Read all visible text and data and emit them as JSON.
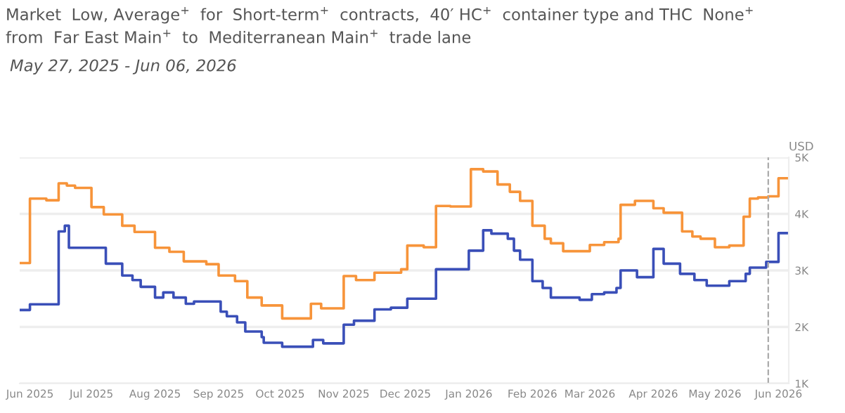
{
  "chart_data": {
    "type": "step",
    "title": "Market  Low, Average$^{+}$  for  Short-term$^{+}$  contracts,  40′ HC$^{+}$  container type and THC  None$^{+}$\nfrom  Far East Main$^{+}$  to  Mediterranean Main$^{+}$  trade lane",
    "subtitle": "May 27, 2025 - Jun 06, 2026",
    "ylabel": "USD",
    "series": [
      {
        "color": "#f7943a",
        "x": [
          "2025-05-27",
          "2025-06-01",
          "2025-06-09",
          "2025-06-15",
          "2025-06-19",
          "2025-06-23",
          "2025-07-01",
          "2025-07-07",
          "2025-07-16",
          "2025-07-22",
          "2025-08-01",
          "2025-08-08",
          "2025-08-15",
          "2025-08-26",
          "2025-09-01",
          "2025-09-09",
          "2025-09-15",
          "2025-09-22",
          "2025-10-02",
          "2025-10-16",
          "2025-10-21",
          "2025-11-01",
          "2025-11-07",
          "2025-11-16",
          "2025-11-29",
          "2025-12-02",
          "2025-12-10",
          "2025-12-16",
          "2025-12-23",
          "2026-01-02",
          "2026-01-08",
          "2026-01-15",
          "2026-01-21",
          "2026-01-26",
          "2026-02-01",
          "2026-02-07",
          "2026-02-10",
          "2026-02-16",
          "2026-03-01",
          "2026-03-08",
          "2026-03-15",
          "2026-03-16",
          "2026-03-23",
          "2026-04-01",
          "2026-04-06",
          "2026-04-15",
          "2026-04-20",
          "2026-04-24",
          "2026-05-01",
          "2026-05-08",
          "2026-05-15",
          "2026-05-18",
          "2026-05-22",
          "2026-05-27",
          "2026-06-01",
          "2026-06-06"
        ],
        "values": [
          3130,
          4270,
          4240,
          4540,
          4500,
          4460,
          4120,
          3990,
          3790,
          3680,
          3400,
          3330,
          3160,
          3110,
          2910,
          2810,
          2520,
          2380,
          2150,
          2410,
          2330,
          2900,
          2830,
          2960,
          3020,
          3440,
          3410,
          4140,
          4130,
          4790,
          4750,
          4520,
          4390,
          4230,
          3790,
          3560,
          3480,
          3340,
          3450,
          3500,
          3560,
          4160,
          4230,
          4100,
          4020,
          3690,
          3600,
          3560,
          3410,
          3440,
          3950,
          4270,
          4290,
          4310,
          4630,
          4630
        ]
      },
      {
        "color": "#3a4fb8",
        "x": [
          "2025-05-27",
          "2025-06-01",
          "2025-06-15",
          "2025-06-18",
          "2025-06-20",
          "2025-07-08",
          "2025-07-16",
          "2025-07-21",
          "2025-07-25",
          "2025-08-01",
          "2025-08-05",
          "2025-08-10",
          "2025-08-16",
          "2025-08-20",
          "2025-09-02",
          "2025-09-05",
          "2025-09-10",
          "2025-09-14",
          "2025-09-22",
          "2025-09-23",
          "2025-10-02",
          "2025-10-17",
          "2025-10-22",
          "2025-11-01",
          "2025-11-06",
          "2025-11-16",
          "2025-11-24",
          "2025-12-02",
          "2025-12-16",
          "2026-01-01",
          "2026-01-08",
          "2026-01-12",
          "2026-01-20",
          "2026-01-23",
          "2026-01-26",
          "2026-02-01",
          "2026-02-06",
          "2026-02-10",
          "2026-02-24",
          "2026-03-02",
          "2026-03-08",
          "2026-03-14",
          "2026-03-16",
          "2026-03-24",
          "2026-04-01",
          "2026-04-06",
          "2026-04-14",
          "2026-04-21",
          "2026-04-27",
          "2026-05-08",
          "2026-05-16",
          "2026-05-18",
          "2026-05-26",
          "2026-06-01",
          "2026-06-06"
        ],
        "values": [
          2300,
          2400,
          3690,
          3790,
          3400,
          3120,
          2910,
          2830,
          2710,
          2520,
          2610,
          2520,
          2410,
          2450,
          2270,
          2190,
          2080,
          1920,
          1820,
          1720,
          1650,
          1770,
          1710,
          2040,
          2110,
          2310,
          2340,
          2500,
          3020,
          3350,
          3710,
          3650,
          3560,
          3350,
          3190,
          2810,
          2690,
          2520,
          2480,
          2580,
          2610,
          2690,
          3000,
          2880,
          3380,
          3120,
          2940,
          2830,
          2730,
          2810,
          2940,
          3050,
          3150,
          3660,
          3660
        ]
      }
    ],
    "xlim": [
      "2025-05-27",
      "2026-06-06"
    ],
    "xticks": [
      {
        "value": "2025-06-01",
        "label": "Jun 2025"
      },
      {
        "value": "2025-07-01",
        "label": "Jul 2025"
      },
      {
        "value": "2025-08-01",
        "label": "Aug 2025"
      },
      {
        "value": "2025-09-01",
        "label": "Sep 2025"
      },
      {
        "value": "2025-10-01",
        "label": "Oct 2025"
      },
      {
        "value": "2025-11-01",
        "label": "Nov 2025"
      },
      {
        "value": "2025-12-01",
        "label": "Dec 2025"
      },
      {
        "value": "2026-01-01",
        "label": "Jan 2026"
      },
      {
        "value": "2026-02-01",
        "label": "Feb 2026"
      },
      {
        "value": "2026-03-01",
        "label": "Mar 2026"
      },
      {
        "value": "2026-04-01",
        "label": "Apr 2026"
      },
      {
        "value": "2026-05-01",
        "label": "May 2026"
      },
      {
        "value": "2026-06-01",
        "label": "Jun 2026"
      }
    ],
    "ylim": [
      1000,
      5000
    ],
    "yticks": [
      {
        "value": 1000,
        "label": "1K"
      },
      {
        "value": 2000,
        "label": "2K"
      },
      {
        "value": 3000,
        "label": "3K"
      },
      {
        "value": 4000,
        "label": "4K"
      },
      {
        "value": 5000,
        "label": "5K"
      }
    ],
    "ref_lines": [
      {
        "axis": "x",
        "value": "2026-05-27",
        "color": "#aaaaaa",
        "line_style": "dashed"
      }
    ],
    "grid": "y",
    "line_style": "solid",
    "marker": "none"
  }
}
